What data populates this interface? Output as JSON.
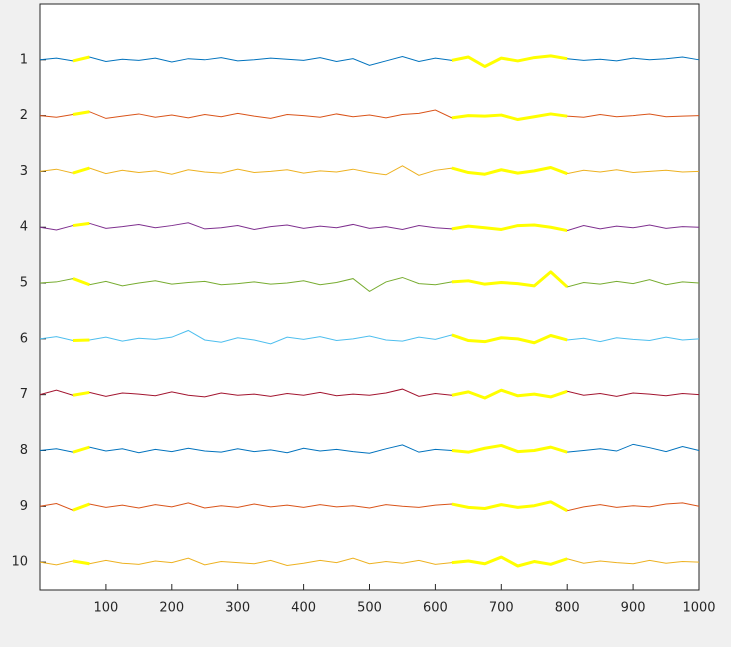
{
  "chart_data": {
    "type": "line",
    "x": [
      0,
      25,
      50,
      75,
      100,
      125,
      150,
      175,
      200,
      225,
      250,
      275,
      300,
      325,
      350,
      375,
      400,
      425,
      450,
      475,
      500,
      525,
      550,
      575,
      600,
      625,
      650,
      675,
      700,
      725,
      750,
      775,
      800,
      825,
      850,
      875,
      900,
      925,
      950,
      975,
      1000
    ],
    "xlim": [
      0,
      1000
    ],
    "xticks": [
      100,
      200,
      300,
      400,
      500,
      600,
      700,
      800,
      900,
      1000
    ],
    "ylim": [
      0,
      10.5
    ],
    "y_reversed": true,
    "yticks": [
      1,
      2,
      3,
      4,
      5,
      6,
      7,
      8,
      9,
      10
    ],
    "highlight": {
      "color": "#ffff00",
      "ranges": [
        [
          50,
          80
        ],
        [
          625,
          810
        ]
      ]
    },
    "series": [
      {
        "color": "#0072bd",
        "values": [
          1.0,
          0.97,
          1.02,
          0.95,
          1.03,
          0.99,
          1.01,
          0.97,
          1.04,
          0.98,
          1.0,
          0.96,
          1.02,
          1.0,
          0.97,
          0.99,
          1.01,
          0.96,
          1.03,
          0.98,
          1.1,
          1.02,
          0.94,
          1.03,
          0.97,
          1.01,
          0.95,
          1.12,
          0.97,
          1.02,
          0.96,
          0.93,
          0.98,
          1.01,
          0.99,
          1.02,
          0.97,
          1.0,
          0.98,
          0.95,
          1.0
        ]
      },
      {
        "color": "#d95319",
        "values": [
          2.0,
          2.03,
          1.98,
          1.93,
          2.05,
          2.01,
          1.97,
          2.03,
          1.99,
          2.04,
          1.98,
          2.02,
          1.96,
          2.01,
          2.05,
          1.98,
          2.0,
          2.03,
          1.97,
          2.02,
          1.99,
          2.04,
          1.98,
          1.96,
          1.9,
          2.04,
          2.0,
          2.01,
          1.99,
          2.07,
          2.02,
          1.97,
          2.01,
          2.03,
          1.98,
          2.02,
          2.0,
          1.97,
          2.02,
          2.01,
          2.0
        ]
      },
      {
        "color": "#edb120",
        "values": [
          3.0,
          2.96,
          3.03,
          2.94,
          3.04,
          2.98,
          3.02,
          2.99,
          3.05,
          2.97,
          3.01,
          3.03,
          2.96,
          3.02,
          3.0,
          2.97,
          3.03,
          2.99,
          3.01,
          2.96,
          3.02,
          3.06,
          2.9,
          3.07,
          2.98,
          2.94,
          3.02,
          3.05,
          2.97,
          3.03,
          2.99,
          2.93,
          3.04,
          2.98,
          3.01,
          2.97,
          3.02,
          3.0,
          2.98,
          3.01,
          3.0
        ]
      },
      {
        "color": "#7e2f8e",
        "values": [
          4.0,
          4.05,
          3.97,
          3.93,
          4.02,
          3.99,
          3.95,
          4.01,
          3.97,
          3.92,
          4.03,
          4.01,
          3.97,
          4.04,
          3.99,
          3.96,
          4.02,
          3.98,
          4.01,
          3.95,
          4.02,
          3.99,
          4.04,
          3.97,
          4.01,
          4.03,
          3.98,
          4.01,
          4.04,
          3.97,
          3.96,
          4.0,
          4.06,
          3.97,
          4.03,
          3.98,
          4.01,
          3.96,
          4.02,
          3.99,
          4.0
        ]
      },
      {
        "color": "#77ac30",
        "values": [
          5.0,
          4.98,
          4.92,
          5.03,
          4.97,
          5.05,
          5.0,
          4.96,
          5.02,
          4.99,
          4.97,
          5.03,
          5.01,
          4.98,
          5.02,
          5.0,
          4.96,
          5.03,
          4.99,
          4.92,
          5.15,
          4.98,
          4.9,
          5.01,
          5.03,
          4.98,
          4.96,
          5.02,
          4.99,
          5.01,
          5.05,
          4.8,
          5.07,
          4.99,
          5.02,
          4.97,
          5.01,
          4.94,
          5.03,
          4.98,
          5.0
        ]
      },
      {
        "color": "#4dbeee",
        "values": [
          6.0,
          5.96,
          6.03,
          6.02,
          5.97,
          6.04,
          5.99,
          6.01,
          5.97,
          5.85,
          6.02,
          6.06,
          5.98,
          6.02,
          6.09,
          5.97,
          6.01,
          5.96,
          6.03,
          6.0,
          5.95,
          6.02,
          6.04,
          5.97,
          6.01,
          5.93,
          6.03,
          6.05,
          5.98,
          6.0,
          6.07,
          5.94,
          6.02,
          5.99,
          6.05,
          5.98,
          6.01,
          6.03,
          5.97,
          6.02,
          6.0
        ]
      },
      {
        "color": "#a2142f",
        "values": [
          7.0,
          6.92,
          7.01,
          6.96,
          7.03,
          6.97,
          6.99,
          7.02,
          6.95,
          7.01,
          7.04,
          6.97,
          7.01,
          6.99,
          7.03,
          6.98,
          7.01,
          6.96,
          7.02,
          6.99,
          7.01,
          6.97,
          6.9,
          7.03,
          6.98,
          7.01,
          6.95,
          7.06,
          6.92,
          7.02,
          6.99,
          7.04,
          6.94,
          7.01,
          6.98,
          7.03,
          6.97,
          6.99,
          7.02,
          6.98,
          7.0
        ]
      },
      {
        "color": "#0072bd",
        "values": [
          8.0,
          7.97,
          8.03,
          7.94,
          8.01,
          7.97,
          8.04,
          7.98,
          8.02,
          7.96,
          8.01,
          8.03,
          7.97,
          8.02,
          7.99,
          8.04,
          7.96,
          8.01,
          7.98,
          8.02,
          8.05,
          7.97,
          7.9,
          8.03,
          7.98,
          8.0,
          8.03,
          7.96,
          7.91,
          8.02,
          8.0,
          7.94,
          8.03,
          8.0,
          7.97,
          8.01,
          7.89,
          7.95,
          8.02,
          7.93,
          8.0
        ]
      },
      {
        "color": "#d95319",
        "values": [
          9.0,
          8.95,
          9.07,
          8.96,
          9.02,
          8.98,
          9.03,
          8.97,
          9.01,
          8.94,
          9.03,
          8.99,
          9.02,
          8.96,
          9.01,
          8.98,
          9.02,
          8.97,
          9.01,
          8.99,
          9.03,
          8.97,
          9.0,
          9.02,
          8.98,
          8.96,
          9.02,
          9.04,
          8.97,
          9.02,
          8.99,
          8.92,
          9.08,
          9.01,
          8.97,
          9.02,
          8.99,
          9.01,
          8.96,
          8.94,
          9.0
        ]
      },
      {
        "color": "#edb120",
        "values": [
          10.0,
          10.05,
          9.98,
          10.03,
          9.97,
          10.02,
          10.04,
          9.98,
          10.01,
          9.93,
          10.05,
          9.99,
          10.01,
          10.03,
          9.97,
          10.06,
          10.02,
          9.97,
          10.01,
          9.93,
          10.03,
          9.99,
          10.02,
          9.97,
          10.04,
          10.01,
          9.98,
          10.03,
          9.91,
          10.07,
          9.99,
          10.04,
          9.94,
          10.02,
          9.98,
          10.01,
          10.03,
          9.97,
          10.02,
          9.99,
          10.0
        ]
      }
    ]
  }
}
